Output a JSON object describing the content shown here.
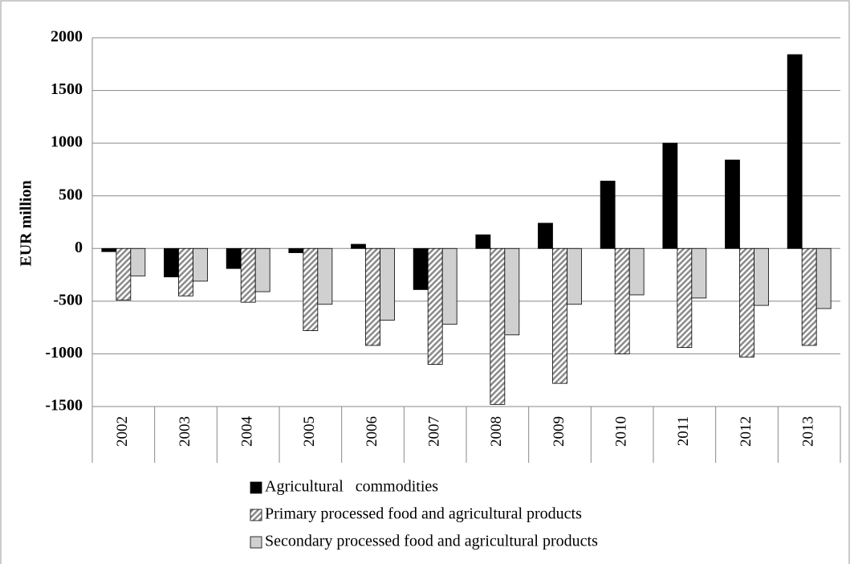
{
  "chart_data": {
    "type": "bar",
    "y_label": "EUR million",
    "categories": [
      "2002",
      "2003",
      "2004",
      "2005",
      "2006",
      "2007",
      "2008",
      "2009",
      "2010",
      "2011",
      "2012",
      "2013"
    ],
    "series": [
      {
        "name": "Agricultural   commodities",
        "color": "#000000",
        "values": [
          -30,
          -270,
          -190,
          -40,
          40,
          -390,
          130,
          240,
          640,
          1000,
          840,
          1840
        ]
      },
      {
        "name": "Primary processed food and agricultural products",
        "color": "#8a8a8a",
        "pattern": "hatch",
        "values": [
          -490,
          -450,
          -510,
          -780,
          -920,
          -1100,
          -1480,
          -1280,
          -1000,
          -940,
          -1030,
          -920
        ]
      },
      {
        "name": "Secondary processed food and agricultural products",
        "color": "#d0d0d0",
        "values": [
          -260,
          -310,
          -410,
          -530,
          -680,
          -720,
          -820,
          -530,
          -440,
          -470,
          -540,
          -570
        ]
      }
    ],
    "ylim": [
      -1500,
      2000
    ],
    "yticks": [
      -1500,
      -1000,
      -500,
      0,
      500,
      1000,
      1500,
      2000
    ],
    "grid": true,
    "legend": "bottom"
  }
}
